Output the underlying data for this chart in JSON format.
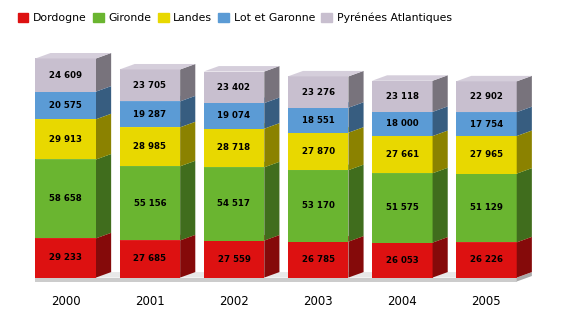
{
  "years": [
    "2000",
    "2001",
    "2002",
    "2003",
    "2004",
    "2005"
  ],
  "segments": {
    "Dordogne": [
      29233,
      27685,
      27559,
      26785,
      26053,
      26226
    ],
    "Gironde": [
      58658,
      55156,
      54517,
      53170,
      51575,
      51129
    ],
    "Landes": [
      29913,
      28985,
      28718,
      27870,
      27661,
      27965
    ],
    "Lot et Garonne": [
      20575,
      19287,
      19074,
      18551,
      18000,
      17754
    ],
    "Pyrénées Atlantiques": [
      24609,
      23705,
      23402,
      23276,
      23118,
      22902
    ]
  },
  "colors": {
    "Dordogne": "#dd1111",
    "Gironde": "#6ab530",
    "Landes": "#e8d800",
    "Lot et Garonne": "#5b9bd5",
    "Pyrénées Atlantiques": "#c8bfcf"
  },
  "bar_width": 0.72,
  "figsize": [
    5.7,
    3.23
  ],
  "dpi": 100,
  "bg_color": "#ffffff",
  "label_fontsize": 6.2,
  "legend_fontsize": 7.8,
  "tick_fontsize": 8.5
}
